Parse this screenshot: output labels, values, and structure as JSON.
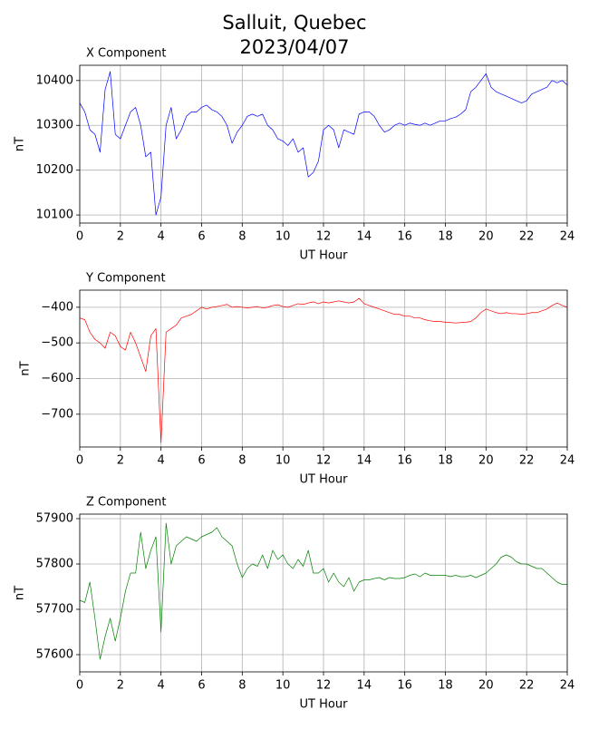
{
  "title": "Salluit, Quebec",
  "subtitle": "2023/04/07",
  "chart_data": [
    {
      "type": "line",
      "title": "X Component",
      "xlabel": "UT Hour",
      "ylabel": "nT",
      "color": "#0000ff",
      "grid": true,
      "xlim": [
        0,
        24
      ],
      "xticks": [
        0,
        2,
        4,
        6,
        8,
        10,
        12,
        14,
        16,
        18,
        20,
        22,
        24
      ],
      "ylim": [
        10082,
        10434
      ],
      "yticks": [
        10100,
        10200,
        10300,
        10400
      ],
      "x": [
        0,
        0.25,
        0.5,
        0.75,
        1,
        1.25,
        1.5,
        1.75,
        2,
        2.25,
        2.5,
        2.75,
        3,
        3.25,
        3.5,
        3.75,
        4,
        4.25,
        4.5,
        4.75,
        5,
        5.25,
        5.5,
        5.75,
        6,
        6.25,
        6.5,
        6.75,
        7,
        7.25,
        7.5,
        7.75,
        8,
        8.25,
        8.5,
        8.75,
        9,
        9.25,
        9.5,
        9.75,
        10,
        10.25,
        10.5,
        10.75,
        11,
        11.25,
        11.5,
        11.75,
        12,
        12.25,
        12.5,
        12.75,
        13,
        13.25,
        13.5,
        13.75,
        14,
        14.25,
        14.5,
        14.75,
        15,
        15.25,
        15.5,
        15.75,
        16,
        16.25,
        16.5,
        16.75,
        17,
        17.25,
        17.5,
        17.75,
        18,
        18.25,
        18.5,
        18.75,
        19,
        19.25,
        19.5,
        19.75,
        20,
        20.25,
        20.5,
        20.75,
        21,
        21.25,
        21.5,
        21.75,
        22,
        22.25,
        22.5,
        22.75,
        23,
        23.25,
        23.5,
        23.75,
        24
      ],
      "values": [
        10350,
        10330,
        10290,
        10280,
        10240,
        10380,
        10420,
        10280,
        10270,
        10300,
        10330,
        10340,
        10300,
        10230,
        10240,
        10100,
        10140,
        10300,
        10340,
        10270,
        10290,
        10320,
        10330,
        10330,
        10340,
        10345,
        10335,
        10330,
        10320,
        10300,
        10260,
        10285,
        10300,
        10320,
        10325,
        10320,
        10325,
        10300,
        10290,
        10270,
        10265,
        10255,
        10270,
        10240,
        10250,
        10185,
        10195,
        10220,
        10290,
        10300,
        10290,
        10250,
        10290,
        10285,
        10280,
        10325,
        10330,
        10330,
        10320,
        10300,
        10285,
        10290,
        10300,
        10305,
        10300,
        10305,
        10302,
        10300,
        10305,
        10300,
        10305,
        10310,
        10310,
        10315,
        10318,
        10325,
        10335,
        10375,
        10385,
        10400,
        10415,
        10385,
        10375,
        10370,
        10365,
        10360,
        10355,
        10350,
        10355,
        10370,
        10375,
        10380,
        10385,
        10400,
        10395,
        10400,
        10390
      ]
    },
    {
      "type": "line",
      "title": "Y Component",
      "xlabel": "UT Hour",
      "ylabel": "nT",
      "color": "#ff0000",
      "grid": true,
      "xlim": [
        0,
        24
      ],
      "xticks": [
        0,
        2,
        4,
        6,
        8,
        10,
        12,
        14,
        16,
        18,
        20,
        22,
        24
      ],
      "ylim": [
        -792,
        -352
      ],
      "yticks": [
        {
          "value": -700,
          "label": "−700"
        },
        {
          "value": -600,
          "label": "−600"
        },
        {
          "value": -500,
          "label": "−500"
        },
        {
          "value": -400,
          "label": "−400"
        }
      ],
      "x": [
        0,
        0.25,
        0.5,
        0.75,
        1,
        1.25,
        1.5,
        1.75,
        2,
        2.25,
        2.5,
        2.75,
        3,
        3.25,
        3.5,
        3.75,
        4,
        4.25,
        4.5,
        4.75,
        5,
        5.25,
        5.5,
        5.75,
        6,
        6.25,
        6.5,
        6.75,
        7,
        7.25,
        7.5,
        7.75,
        8,
        8.25,
        8.5,
        8.75,
        9,
        9.25,
        9.5,
        9.75,
        10,
        10.25,
        10.5,
        10.75,
        11,
        11.25,
        11.5,
        11.75,
        12,
        12.25,
        12.5,
        12.75,
        13,
        13.25,
        13.5,
        13.75,
        14,
        14.25,
        14.5,
        14.75,
        15,
        15.25,
        15.5,
        15.75,
        16,
        16.25,
        16.5,
        16.75,
        17,
        17.25,
        17.5,
        17.75,
        18,
        18.25,
        18.5,
        18.75,
        19,
        19.25,
        19.5,
        19.75,
        20,
        20.25,
        20.5,
        20.75,
        21,
        21.25,
        21.5,
        21.75,
        22,
        22.25,
        22.5,
        22.75,
        23,
        23.25,
        23.5,
        23.75,
        24
      ],
      "values": [
        -430,
        -435,
        -470,
        -490,
        -500,
        -515,
        -470,
        -480,
        -510,
        -520,
        -470,
        -500,
        -540,
        -580,
        -480,
        -460,
        -780,
        -470,
        -460,
        -450,
        -430,
        -425,
        -420,
        -410,
        -400,
        -405,
        -400,
        -398,
        -395,
        -392,
        -400,
        -398,
        -400,
        -402,
        -400,
        -398,
        -402,
        -400,
        -395,
        -393,
        -398,
        -400,
        -395,
        -390,
        -392,
        -388,
        -385,
        -390,
        -385,
        -388,
        -385,
        -382,
        -385,
        -388,
        -385,
        -375,
        -390,
        -395,
        -400,
        -405,
        -410,
        -415,
        -420,
        -420,
        -425,
        -425,
        -430,
        -430,
        -435,
        -438,
        -440,
        -440,
        -442,
        -443,
        -444,
        -443,
        -442,
        -440,
        -430,
        -415,
        -405,
        -410,
        -415,
        -418,
        -415,
        -418,
        -418,
        -420,
        -418,
        -415,
        -415,
        -410,
        -405,
        -395,
        -388,
        -395,
        -400
      ]
    },
    {
      "type": "line",
      "title": "Z Component",
      "xlabel": "UT Hour",
      "ylabel": "nT",
      "color": "#008000",
      "grid": true,
      "xlim": [
        0,
        24
      ],
      "xticks": [
        0,
        2,
        4,
        6,
        8,
        10,
        12,
        14,
        16,
        18,
        20,
        22,
        24
      ],
      "ylim": [
        57562,
        57910
      ],
      "yticks": [
        57600,
        57700,
        57800,
        57900
      ],
      "x": [
        0,
        0.25,
        0.5,
        0.75,
        1,
        1.25,
        1.5,
        1.75,
        2,
        2.25,
        2.5,
        2.75,
        3,
        3.25,
        3.5,
        3.75,
        4,
        4.25,
        4.5,
        4.75,
        5,
        5.25,
        5.5,
        5.75,
        6,
        6.25,
        6.5,
        6.75,
        7,
        7.25,
        7.5,
        7.75,
        8,
        8.25,
        8.5,
        8.75,
        9,
        9.25,
        9.5,
        9.75,
        10,
        10.25,
        10.5,
        10.75,
        11,
        11.25,
        11.5,
        11.75,
        12,
        12.25,
        12.5,
        12.75,
        13,
        13.25,
        13.5,
        13.75,
        14,
        14.25,
        14.5,
        14.75,
        15,
        15.25,
        15.5,
        15.75,
        16,
        16.25,
        16.5,
        16.75,
        17,
        17.25,
        17.5,
        17.75,
        18,
        18.25,
        18.5,
        18.75,
        19,
        19.25,
        19.5,
        19.75,
        20,
        20.25,
        20.5,
        20.75,
        21,
        21.25,
        21.5,
        21.75,
        22,
        22.25,
        22.5,
        22.75,
        23,
        23.25,
        23.5,
        23.75,
        24
      ],
      "values": [
        57720,
        57715,
        57760,
        57680,
        57590,
        57640,
        57680,
        57630,
        57680,
        57740,
        57780,
        57780,
        57870,
        57790,
        57830,
        57860,
        57650,
        57890,
        57800,
        57840,
        57850,
        57860,
        57855,
        57850,
        57860,
        57865,
        57870,
        57880,
        57860,
        57850,
        57840,
        57800,
        57770,
        57790,
        57800,
        57795,
        57820,
        57790,
        57830,
        57810,
        57820,
        57800,
        57790,
        57810,
        57795,
        57830,
        57780,
        57780,
        57790,
        57760,
        57780,
        57760,
        57750,
        57770,
        57740,
        57760,
        57765,
        57765,
        57768,
        57770,
        57765,
        57770,
        57768,
        57768,
        57770,
        57775,
        57778,
        57772,
        57780,
        57775,
        57775,
        57775,
        57775,
        57772,
        57775,
        57772,
        57772,
        57775,
        57770,
        57775,
        57780,
        57790,
        57800,
        57815,
        57820,
        57815,
        57805,
        57800,
        57800,
        57795,
        57790,
        57790,
        57780,
        57770,
        57760,
        57755,
        57755
      ]
    }
  ]
}
